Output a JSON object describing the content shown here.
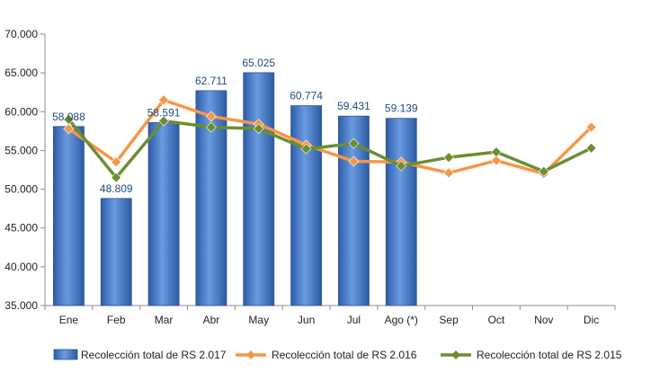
{
  "chart_data": {
    "type": "bar",
    "categories": [
      "Ene",
      "Feb",
      "Mar",
      "Abr",
      "May",
      "Jun",
      "Jul",
      "Ago (*)",
      "Sep",
      "Oct",
      "Nov",
      "Dic"
    ],
    "ylim": [
      35000,
      70000
    ],
    "y_ticks": [
      35000,
      40000,
      45000,
      50000,
      55000,
      60000,
      65000,
      70000
    ],
    "y_tick_labels": [
      "35.000",
      "40.000",
      "45.000",
      "50.000",
      "55.000",
      "60.000",
      "65.000",
      "70.000"
    ],
    "grid": false,
    "legend_position": "bottom",
    "series": [
      {
        "name": "Recolección total de RS 2.017",
        "kind": "bar",
        "color": "#4a7fd0",
        "values": [
          58088,
          48809,
          58591,
          62711,
          65025,
          60774,
          59431,
          59139,
          null,
          null,
          null,
          null
        ],
        "labels": [
          "58.088",
          "48.809",
          "58.591",
          "62.711",
          "65.025",
          "60.774",
          "59.431",
          "59.139",
          "",
          "",
          "",
          ""
        ]
      },
      {
        "name": "Recolección total de RS 2.016",
        "kind": "line",
        "color": "#f79646",
        "values": [
          57800,
          53500,
          61500,
          59400,
          58400,
          55700,
          53600,
          53500,
          52100,
          53700,
          52000,
          58000
        ]
      },
      {
        "name": "Recolección total de RS 2.015",
        "kind": "line",
        "color": "#6a8e31",
        "values": [
          59000,
          51500,
          58800,
          58000,
          57800,
          55200,
          55900,
          53000,
          54100,
          54800,
          52300,
          55300
        ]
      }
    ]
  }
}
